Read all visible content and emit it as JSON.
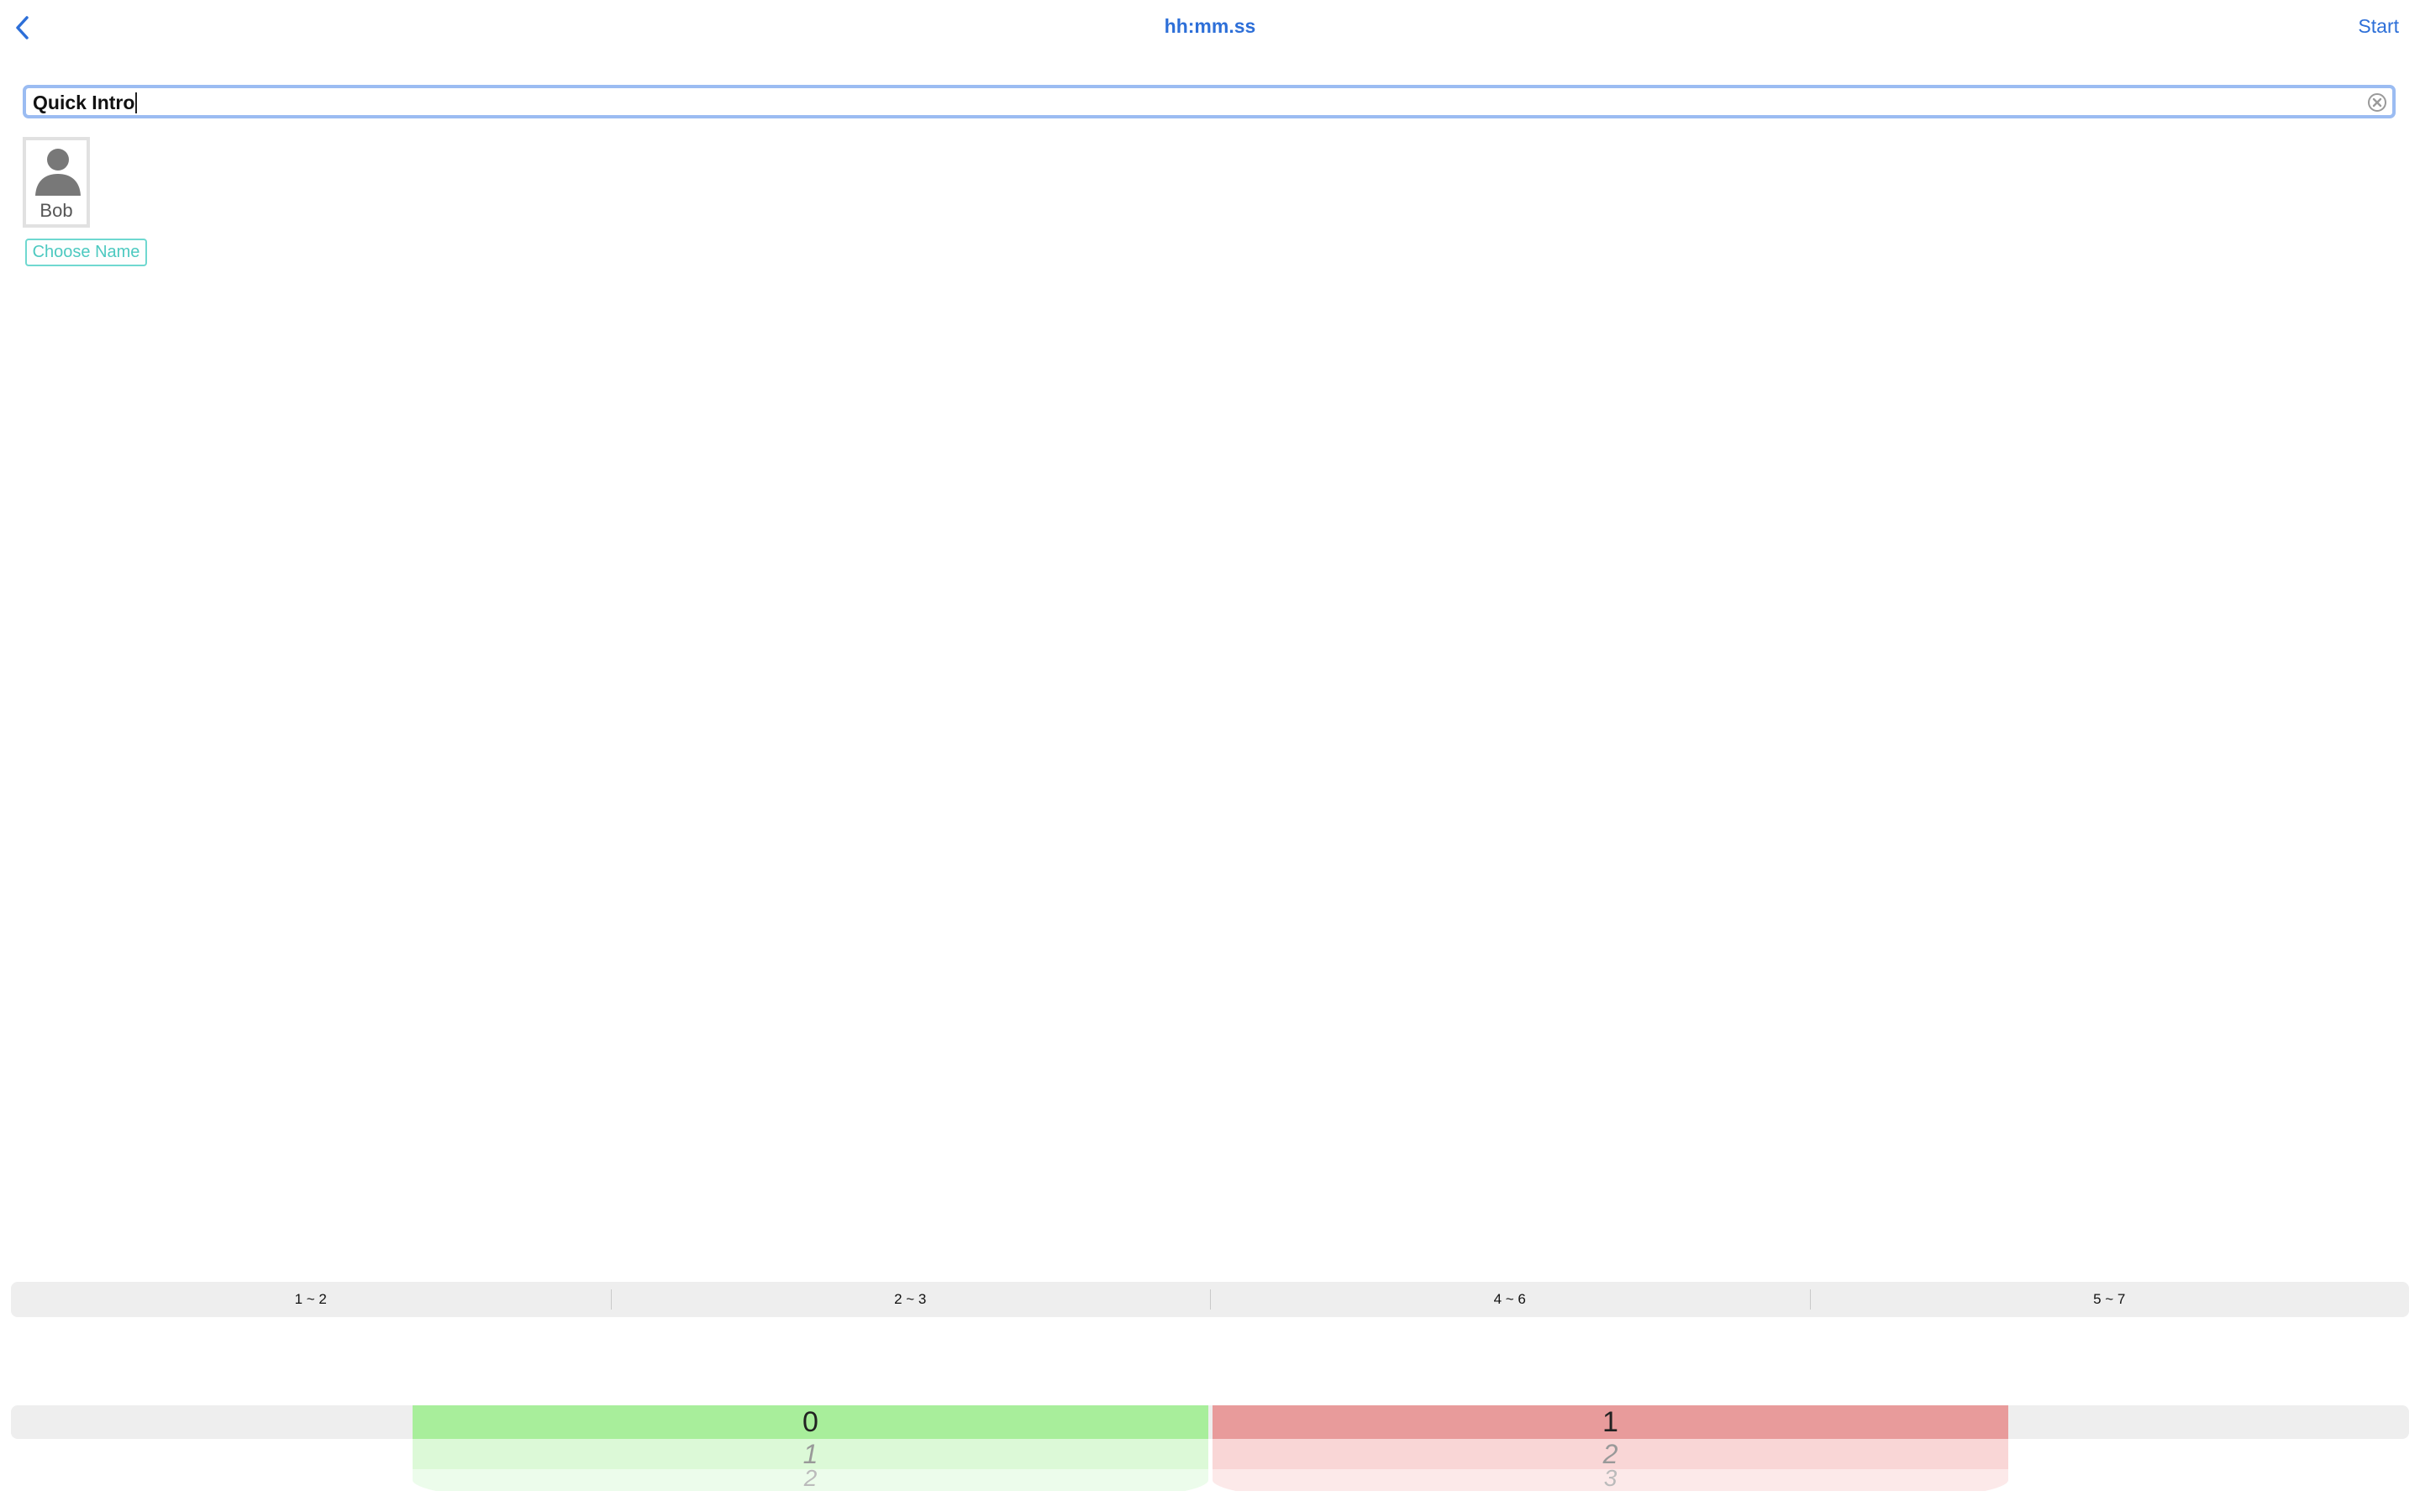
{
  "nav": {
    "title": "hh:mm.ss",
    "start_label": "Start",
    "back_icon": "chevron-left-icon"
  },
  "title_field": {
    "value": "Quick Intro",
    "clear_icon": "clear-circle-icon"
  },
  "participant": {
    "name": "Bob",
    "icon": "person-silhouette-icon"
  },
  "choose_name_label": "Choose Name",
  "segments": [
    "1 ~ 2",
    "2 ~ 3",
    "4 ~ 6",
    "5 ~ 7"
  ],
  "pickers": {
    "green": {
      "selected": "0",
      "next1": "1",
      "next2": "2"
    },
    "red": {
      "selected": "1",
      "next1": "2",
      "next2": "3"
    }
  },
  "colors": {
    "accent": "#2d6fd8",
    "teal": "#4cc9c0",
    "green": "#a8ee9b",
    "red": "#e89b9b"
  }
}
